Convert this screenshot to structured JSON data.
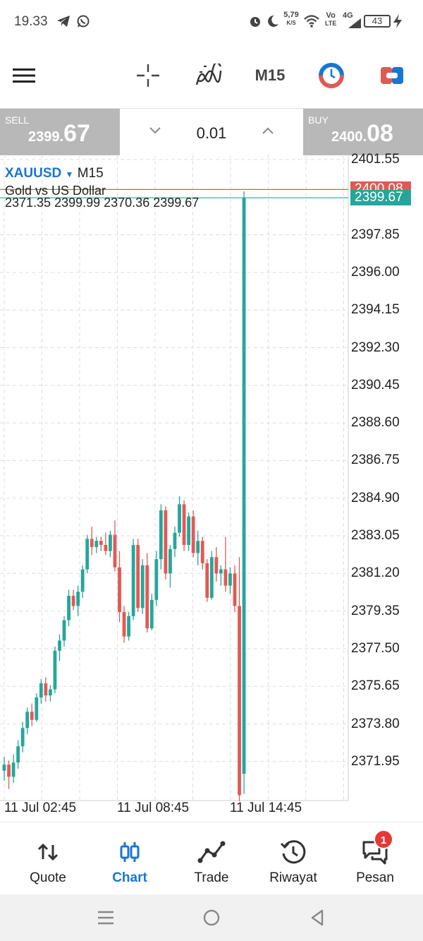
{
  "status_bar": {
    "time": "19.33",
    "net_speed": "5,79",
    "net_unit": "K/S",
    "volte": "Vo",
    "lte": "LTE",
    "signal_type": "4G",
    "battery": "43",
    "icons": [
      "telegram-icon",
      "whatsapp-icon",
      "alarm-icon",
      "moon-icon",
      "wifi-icon",
      "signal-icon",
      "battery-icon",
      "charging-icon"
    ]
  },
  "toolbar": {
    "timeframe": "M15",
    "icons": [
      "menu-icon",
      "crosshair-icon",
      "indicators-icon",
      "timeframe",
      "one-click-trading-icon",
      "trade-toggle-icon"
    ]
  },
  "trade_bar": {
    "sell_label": "SELL",
    "sell_price_prefix": "2399.",
    "sell_price_big": "67",
    "buy_label": "BUY",
    "buy_price_prefix": "2400.",
    "buy_price_big": "08",
    "lot": "0.01"
  },
  "chart": {
    "symbol": "XAUUSD",
    "timeframe": "M15",
    "description": "Gold vs US Dollar",
    "ohlc": "2371.35 2399.99 2370.36 2399.67",
    "ask_tag": "2400.08",
    "bid_tag": "2399.67",
    "colors": {
      "up": "#26a69a",
      "down": "#e05a55",
      "grid": "#dddddd",
      "ask_line": "#e05a55",
      "bid_line": "#26a69a"
    },
    "y_labels": [
      "2401.55",
      "2397.85",
      "2396.00",
      "2394.15",
      "2392.30",
      "2390.45",
      "2388.60",
      "2386.75",
      "2384.90",
      "2383.05",
      "2381.20",
      "2379.35",
      "2377.50",
      "2375.65",
      "2373.80",
      "2371.95"
    ],
    "x_labels": [
      "11 Jul 02:45",
      "11 Jul 08:45",
      "11 Jul 14:45"
    ]
  },
  "chart_data": {
    "type": "candlestick",
    "symbol": "XAUUSD",
    "timeframe": "M15",
    "ylim": [
      2370.0,
      2401.9
    ],
    "y_ticks": [
      2401.55,
      2397.85,
      2396.0,
      2394.15,
      2392.3,
      2390.45,
      2388.6,
      2386.75,
      2384.9,
      2383.05,
      2381.2,
      2379.35,
      2377.5,
      2375.65,
      2373.8,
      2371.95
    ],
    "x_ticks": [
      "11 Jul 02:45",
      "11 Jul 08:45",
      "11 Jul 14:45"
    ],
    "candles": [
      [
        2371.5,
        2372.2,
        2371.0,
        2371.8
      ],
      [
        2371.8,
        2372.0,
        2370.6,
        2371.2
      ],
      [
        2371.2,
        2372.3,
        2370.9,
        2371.9
      ],
      [
        2371.9,
        2373.0,
        2371.6,
        2372.7
      ],
      [
        2372.7,
        2373.9,
        2372.4,
        2373.6
      ],
      [
        2373.6,
        2374.6,
        2373.3,
        2374.4
      ],
      [
        2374.4,
        2374.8,
        2373.7,
        2374.0
      ],
      [
        2374.0,
        2375.3,
        2373.9,
        2375.1
      ],
      [
        2375.1,
        2376.0,
        2374.8,
        2375.8
      ],
      [
        2375.8,
        2376.1,
        2374.9,
        2375.2
      ],
      [
        2375.2,
        2375.7,
        2374.9,
        2375.5
      ],
      [
        2375.5,
        2377.6,
        2375.3,
        2377.4
      ],
      [
        2377.4,
        2378.2,
        2376.9,
        2377.9
      ],
      [
        2377.9,
        2379.1,
        2377.6,
        2378.9
      ],
      [
        2378.9,
        2380.4,
        2378.6,
        2380.1
      ],
      [
        2380.1,
        2380.4,
        2379.4,
        2379.6
      ],
      [
        2379.6,
        2380.6,
        2379.1,
        2380.3
      ],
      [
        2380.3,
        2381.6,
        2380.0,
        2381.4
      ],
      [
        2381.4,
        2383.1,
        2381.2,
        2382.9
      ],
      [
        2382.9,
        2383.5,
        2382.1,
        2382.5
      ],
      [
        2382.5,
        2383.0,
        2382.2,
        2382.8
      ],
      [
        2382.8,
        2383.0,
        2382.3,
        2382.6
      ],
      [
        2382.6,
        2383.2,
        2382.1,
        2382.3
      ],
      [
        2382.3,
        2383.3,
        2382.0,
        2383.1
      ],
      [
        2383.1,
        2383.8,
        2381.3,
        2381.5
      ],
      [
        2381.5,
        2382.3,
        2378.8,
        2379.3
      ],
      [
        2379.3,
        2379.6,
        2377.8,
        2378.1
      ],
      [
        2378.1,
        2379.3,
        2377.9,
        2379.1
      ],
      [
        2379.1,
        2382.9,
        2378.9,
        2382.6
      ],
      [
        2382.6,
        2382.9,
        2379.3,
        2379.5
      ],
      [
        2379.5,
        2381.9,
        2379.2,
        2381.6
      ],
      [
        2381.6,
        2382.2,
        2378.3,
        2378.5
      ],
      [
        2378.5,
        2380.2,
        2378.4,
        2379.9
      ],
      [
        2379.9,
        2382.3,
        2379.6,
        2381.9
      ],
      [
        2381.9,
        2384.6,
        2381.4,
        2384.3
      ],
      [
        2384.3,
        2384.5,
        2380.9,
        2381.2
      ],
      [
        2381.2,
        2382.6,
        2380.5,
        2382.4
      ],
      [
        2382.4,
        2383.5,
        2382.0,
        2383.2
      ],
      [
        2383.2,
        2385.0,
        2383.0,
        2384.6
      ],
      [
        2384.6,
        2384.8,
        2382.3,
        2382.6
      ],
      [
        2382.6,
        2384.2,
        2382.3,
        2384.0
      ],
      [
        2384.0,
        2384.3,
        2382.0,
        2382.2
      ],
      [
        2382.2,
        2383.3,
        2381.6,
        2382.8
      ],
      [
        2382.8,
        2383.0,
        2381.4,
        2381.7
      ],
      [
        2381.7,
        2381.9,
        2379.8,
        2380.0
      ],
      [
        2380.0,
        2382.3,
        2379.9,
        2382.0
      ],
      [
        2382.0,
        2382.5,
        2380.8,
        2381.2
      ],
      [
        2381.2,
        2381.6,
        2380.6,
        2381.4
      ],
      [
        2381.4,
        2383.0,
        2380.3,
        2380.6
      ],
      [
        2380.6,
        2381.5,
        2380.2,
        2381.2
      ],
      [
        2381.2,
        2381.6,
        2379.3,
        2379.6
      ],
      [
        2379.6,
        2382.0,
        2370.0,
        2370.3
      ],
      [
        2371.35,
        2399.99,
        2370.36,
        2399.67
      ]
    ]
  },
  "bottom_nav": {
    "items": [
      {
        "label": "Quote",
        "icon": "quote-arrows-icon",
        "active": false
      },
      {
        "label": "Chart",
        "icon": "candlestick-icon",
        "active": true
      },
      {
        "label": "Trade",
        "icon": "trade-line-icon",
        "active": false
      },
      {
        "label": "Riwayat",
        "icon": "history-icon",
        "active": false
      },
      {
        "label": "Pesan",
        "icon": "messages-icon",
        "active": false
      }
    ],
    "badge": "1"
  },
  "system_nav": {
    "icons": [
      "recents-icon",
      "home-icon",
      "back-icon"
    ]
  }
}
